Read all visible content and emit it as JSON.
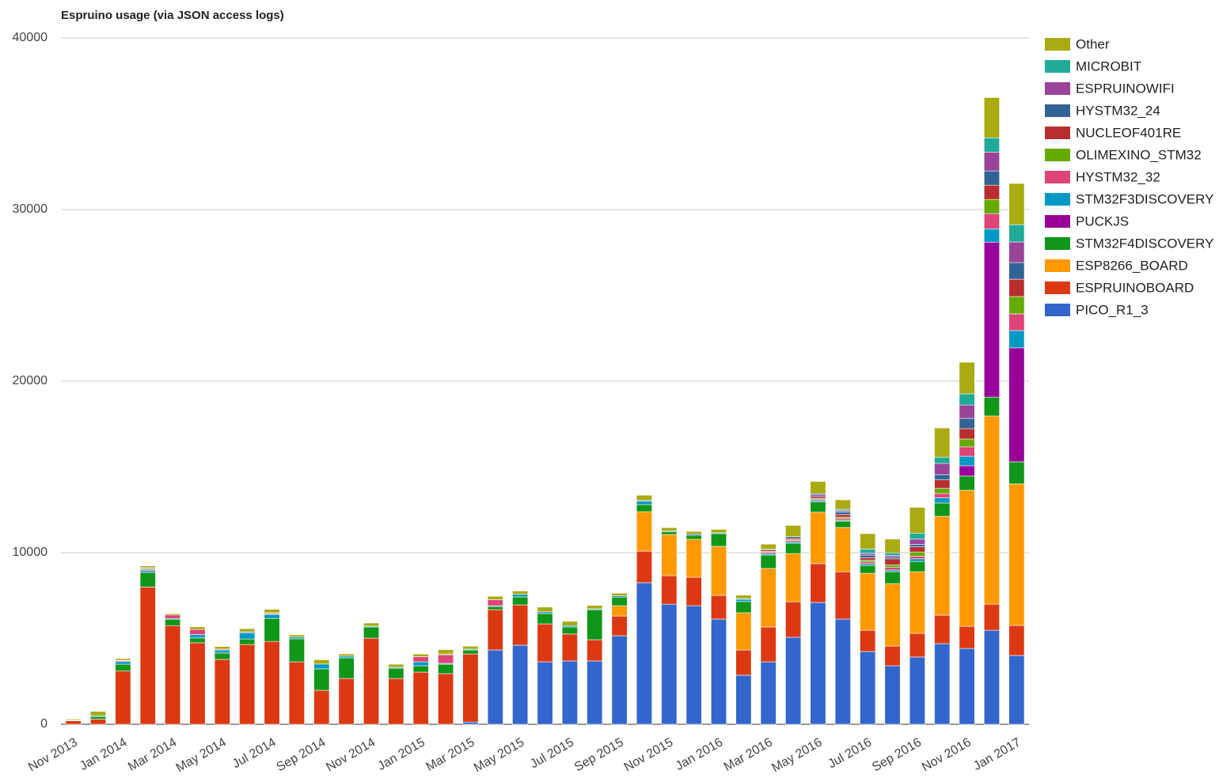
{
  "chart_data": {
    "type": "stacked_bar",
    "title": "Espruino usage (via JSON access logs)",
    "categories": [
      "Nov 2013",
      null,
      "Jan 2014",
      null,
      "Mar 2014",
      null,
      "May 2014",
      null,
      "Jul 2014",
      null,
      "Sep 2014",
      null,
      "Nov 2014",
      null,
      "Jan 2015",
      null,
      "Mar 2015",
      null,
      "May 2015",
      null,
      "Jul 2015",
      null,
      "Sep 2015",
      null,
      "Nov 2015",
      null,
      "Jan 2016",
      null,
      "Mar 2016",
      null,
      "May 2016",
      null,
      "Jul 2016",
      null,
      "Sep 2016",
      null,
      "Nov 2016",
      null,
      "Jan 2017"
    ],
    "ylim": [
      0,
      40000
    ],
    "yticks": [
      0,
      10000,
      20000,
      30000,
      40000
    ],
    "grid": true,
    "legend": "right",
    "series": [
      {
        "name": "PICO_R1_3",
        "color": "#3366cc",
        "values": [
          0,
          0,
          0,
          0,
          0,
          0,
          0,
          0,
          0,
          0,
          0,
          0,
          0,
          0,
          0,
          0,
          130,
          4330,
          4610,
          3640,
          3690,
          3690,
          5160,
          8250,
          7000,
          6910,
          6130,
          2860,
          3640,
          5070,
          7100,
          6130,
          4240,
          3410,
          3920,
          4700,
          4420,
          5480,
          4010
        ]
      },
      {
        "name": "ESPRUINOBOARD",
        "color": "#dc3912",
        "values": [
          200,
          300,
          3100,
          8000,
          5750,
          4750,
          3780,
          4650,
          4830,
          3640,
          1980,
          2670,
          5020,
          2670,
          3040,
          2950,
          3970,
          2350,
          2350,
          2210,
          1570,
          1240,
          1150,
          1840,
          1660,
          1660,
          1380,
          1470,
          2030,
          2070,
          2260,
          2760,
          1240,
          1150,
          1380,
          1660,
          1290,
          1520,
          1750
        ]
      },
      {
        "name": "ESP8266_BOARD",
        "color": "#ff9900",
        "values": [
          0,
          0,
          0,
          0,
          0,
          0,
          0,
          0,
          0,
          0,
          0,
          0,
          0,
          0,
          0,
          0,
          0,
          0,
          0,
          0,
          0,
          0,
          600,
          2300,
          2400,
          2210,
          2860,
          2170,
          3410,
          2810,
          3000,
          2580,
          3320,
          3640,
          3590,
          5760,
          7930,
          10970,
          8250
        ]
      },
      {
        "name": "STM32F4DISCOVERY",
        "color": "#109618",
        "values": [
          20,
          150,
          400,
          850,
          370,
          280,
          370,
          320,
          1340,
          1340,
          1250,
          1200,
          650,
          600,
          370,
          550,
          230,
          180,
          460,
          600,
          410,
          1750,
          500,
          410,
          150,
          230,
          740,
          650,
          780,
          600,
          600,
          370,
          460,
          690,
          600,
          780,
          830,
          1100,
          1290
        ]
      },
      {
        "name": "PUCKJS",
        "color": "#990099",
        "values": [
          0,
          0,
          0,
          0,
          0,
          0,
          0,
          0,
          0,
          0,
          0,
          0,
          0,
          0,
          0,
          0,
          0,
          0,
          0,
          0,
          0,
          0,
          0,
          0,
          0,
          0,
          0,
          0,
          0,
          0,
          0,
          0,
          0,
          0,
          0,
          0,
          600,
          9030,
          6640
        ]
      },
      {
        "name": "STM32F3DISCOVERY",
        "color": "#0099c6",
        "values": [
          20,
          50,
          150,
          100,
          50,
          200,
          180,
          370,
          230,
          100,
          280,
          100,
          50,
          50,
          230,
          50,
          50,
          50,
          150,
          100,
          80,
          50,
          80,
          200,
          50,
          0,
          50,
          130,
          80,
          80,
          80,
          50,
          100,
          100,
          150,
          300,
          550,
          780,
          1010
        ]
      },
      {
        "name": "HYSTM32_32",
        "color": "#dd4477",
        "values": [
          0,
          0,
          50,
          80,
          200,
          300,
          50,
          50,
          50,
          0,
          0,
          0,
          0,
          0,
          300,
          500,
          0,
          350,
          0,
          0,
          0,
          0,
          0,
          0,
          0,
          0,
          0,
          0,
          80,
          80,
          80,
          100,
          100,
          150,
          150,
          250,
          550,
          880,
          970
        ]
      },
      {
        "name": "OLIMEXINO_STM32",
        "color": "#66aa00",
        "values": [
          0,
          0,
          30,
          50,
          0,
          0,
          0,
          0,
          50,
          0,
          0,
          0,
          0,
          0,
          0,
          50,
          0,
          0,
          0,
          0,
          0,
          0,
          0,
          0,
          0,
          0,
          0,
          0,
          50,
          50,
          50,
          80,
          100,
          150,
          250,
          300,
          460,
          830,
          1010
        ]
      },
      {
        "name": "NUCLEOF401RE",
        "color": "#b82e2e",
        "values": [
          0,
          0,
          0,
          0,
          0,
          0,
          0,
          0,
          0,
          0,
          0,
          0,
          0,
          0,
          0,
          0,
          0,
          0,
          0,
          0,
          0,
          0,
          0,
          0,
          0,
          0,
          0,
          0,
          80,
          80,
          100,
          150,
          150,
          350,
          300,
          500,
          600,
          830,
          1010
        ]
      },
      {
        "name": "HYSTM32_24",
        "color": "#316395",
        "values": [
          0,
          0,
          0,
          50,
          0,
          0,
          0,
          0,
          0,
          0,
          0,
          0,
          0,
          0,
          0,
          0,
          0,
          0,
          0,
          0,
          0,
          0,
          0,
          50,
          0,
          80,
          0,
          50,
          50,
          100,
          100,
          150,
          150,
          100,
          150,
          300,
          600,
          830,
          970
        ]
      },
      {
        "name": "ESPRUINOWIFI",
        "color": "#994499",
        "values": [
          0,
          0,
          0,
          0,
          0,
          0,
          0,
          0,
          0,
          0,
          0,
          0,
          0,
          0,
          0,
          0,
          0,
          0,
          0,
          0,
          0,
          0,
          0,
          0,
          0,
          0,
          0,
          0,
          0,
          0,
          80,
          80,
          100,
          100,
          300,
          650,
          780,
          1100,
          1200
        ]
      },
      {
        "name": "MICROBIT",
        "color": "#22aa99",
        "values": [
          0,
          0,
          0,
          0,
          0,
          0,
          0,
          0,
          0,
          0,
          0,
          0,
          0,
          0,
          0,
          0,
          0,
          0,
          0,
          0,
          0,
          0,
          0,
          0,
          0,
          0,
          0,
          0,
          0,
          0,
          0,
          80,
          250,
          150,
          350,
          370,
          650,
          830,
          1010
        ]
      },
      {
        "name": "Other",
        "color": "#aaaa11",
        "values": [
          60,
          250,
          100,
          100,
          80,
          150,
          150,
          180,
          200,
          130,
          250,
          130,
          180,
          180,
          150,
          250,
          170,
          200,
          200,
          280,
          250,
          200,
          150,
          300,
          200,
          150,
          200,
          200,
          300,
          650,
          700,
          550,
          900,
          800,
          1500,
          1700,
          1840,
          2350,
          2400
        ]
      }
    ]
  }
}
